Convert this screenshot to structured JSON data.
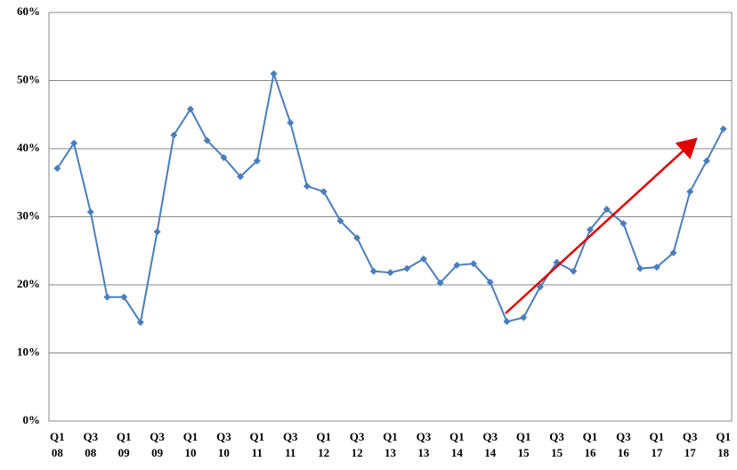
{
  "chart_data": {
    "type": "line",
    "categories": [
      "Q1\n08",
      null,
      "Q3\n08",
      null,
      "Q1\n09",
      null,
      "Q3\n09",
      null,
      "Q1\n10",
      null,
      "Q3\n10",
      null,
      "Q1\n11",
      null,
      "Q3\n11",
      null,
      "Q1\n12",
      null,
      "Q3\n12",
      null,
      "Q1\n13",
      null,
      "Q3\n13",
      null,
      "Q1\n14",
      null,
      "Q3\n14",
      null,
      "Q1\n15",
      null,
      "Q3\n15",
      null,
      "Q1\n16",
      null,
      "Q3\n16",
      null,
      "Q1\n17",
      null,
      "Q3\n17",
      null,
      "Q1\n18"
    ],
    "series": [
      {
        "color": "#4a7ebb",
        "values": [
          37.1,
          40.8,
          30.7,
          18.2,
          18.2,
          14.5,
          27.8,
          42.0,
          45.8,
          41.2,
          38.7,
          35.9,
          38.2,
          51.0,
          43.8,
          34.5,
          33.7,
          29.4,
          26.9,
          22.0,
          21.8,
          22.4,
          23.8,
          20.3,
          22.9,
          23.1,
          20.4,
          14.6,
          15.2,
          19.7,
          23.3,
          22.0,
          28.1,
          31.1,
          29.0,
          22.4,
          22.6,
          24.7,
          33.7,
          38.2,
          42.9
        ]
      }
    ],
    "ylim": [
      0,
      60
    ],
    "yticks": [
      {
        "value": 0,
        "label": "0%"
      },
      {
        "value": 10,
        "label": "10%"
      },
      {
        "value": 20,
        "label": "20%"
      },
      {
        "value": 30,
        "label": "30%"
      },
      {
        "value": 40,
        "label": "40%"
      },
      {
        "value": 50,
        "label": "50%"
      },
      {
        "value": 60,
        "label": "60%"
      }
    ],
    "grid": true
  }
}
